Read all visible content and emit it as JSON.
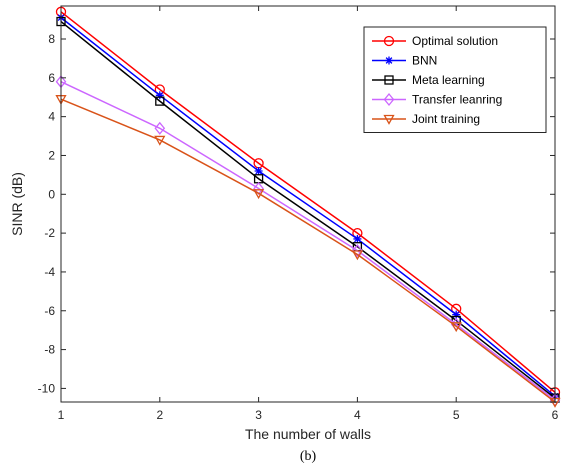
{
  "chart_data": {
    "type": "line",
    "title": "",
    "xlabel": "The number of walls",
    "ylabel": "SINR (dB)",
    "caption": "(b)",
    "x": [
      1,
      2,
      3,
      4,
      5,
      6
    ],
    "xlim": [
      1,
      6
    ],
    "ylim": [
      -10.7,
      9.7
    ],
    "xticks": [
      1,
      2,
      3,
      4,
      5,
      6
    ],
    "yticks": [
      -10,
      -8,
      -6,
      -4,
      -2,
      0,
      2,
      4,
      6,
      8
    ],
    "grid": false,
    "legend_position": "top-right",
    "series": [
      {
        "name": "Optimal solution",
        "color": "#ff0000",
        "marker": "circle",
        "values": [
          9.4,
          5.4,
          1.6,
          -2.0,
          -5.9,
          -10.2
        ]
      },
      {
        "name": "BNN",
        "color": "#0000ff",
        "marker": "asterisk",
        "values": [
          9.1,
          5.1,
          1.2,
          -2.3,
          -6.2,
          -10.4
        ]
      },
      {
        "name": "Meta learning",
        "color": "#000000",
        "marker": "square",
        "values": [
          8.9,
          4.8,
          0.8,
          -2.7,
          -6.5,
          -10.5
        ]
      },
      {
        "name": "Transfer leanring",
        "color": "#cc66ff",
        "marker": "diamond",
        "values": [
          5.8,
          3.4,
          0.3,
          -2.9,
          -6.7,
          -10.6
        ]
      },
      {
        "name": "Joint training",
        "color": "#d95319",
        "marker": "triangle-down",
        "values": [
          4.9,
          2.8,
          0.05,
          -3.1,
          -6.8,
          -10.7
        ]
      }
    ]
  }
}
